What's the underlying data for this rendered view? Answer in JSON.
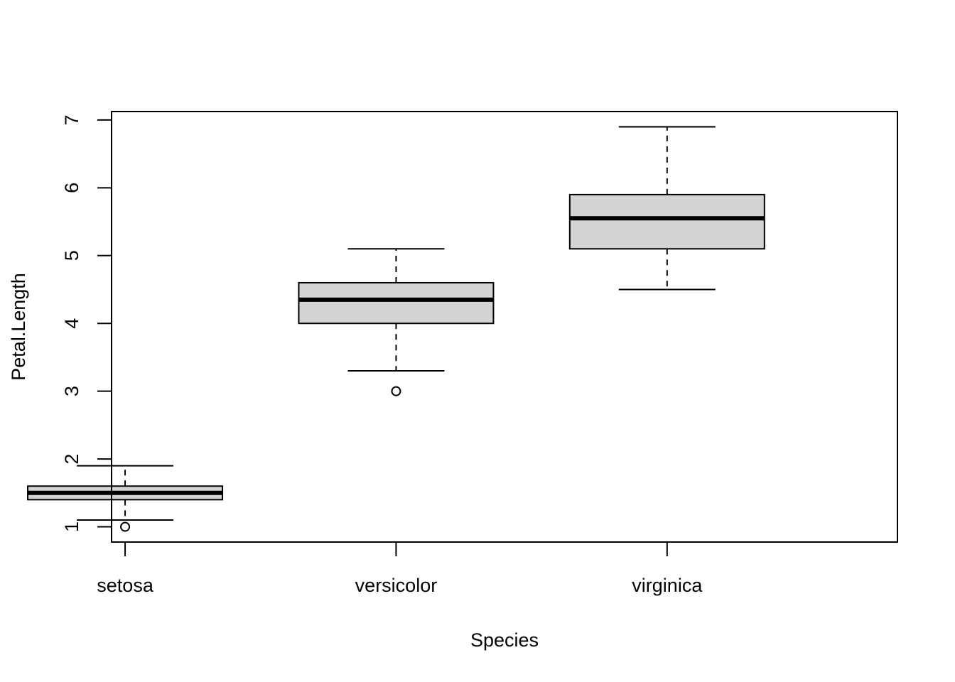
{
  "chart_data": {
    "type": "boxplot",
    "title": "",
    "xlabel": "Species",
    "ylabel": "Petal.Length",
    "categories": [
      "setosa",
      "versicolor",
      "virginica"
    ],
    "ylim": [
      0.775,
      7.125
    ],
    "yticks": [
      "1",
      "2",
      "3",
      "4",
      "5",
      "6",
      "7"
    ],
    "grid": false,
    "legend": "none",
    "boxes": [
      {
        "name": "setosa",
        "whisker_low": 1.1,
        "q1": 1.4,
        "median": 1.5,
        "q3": 1.6,
        "whisker_high": 1.9,
        "outliers": [
          1.0
        ]
      },
      {
        "name": "versicolor",
        "whisker_low": 3.3,
        "q1": 4.0,
        "median": 4.35,
        "q3": 4.6,
        "whisker_high": 5.1,
        "outliers": [
          3.0
        ]
      },
      {
        "name": "virginica",
        "whisker_low": 4.5,
        "q1": 5.1,
        "median": 5.55,
        "q3": 5.9,
        "whisker_high": 6.9,
        "outliers": []
      }
    ]
  },
  "colors": {
    "box_fill": "#d3d3d3",
    "stroke": "#000000",
    "background": "#ffffff"
  }
}
